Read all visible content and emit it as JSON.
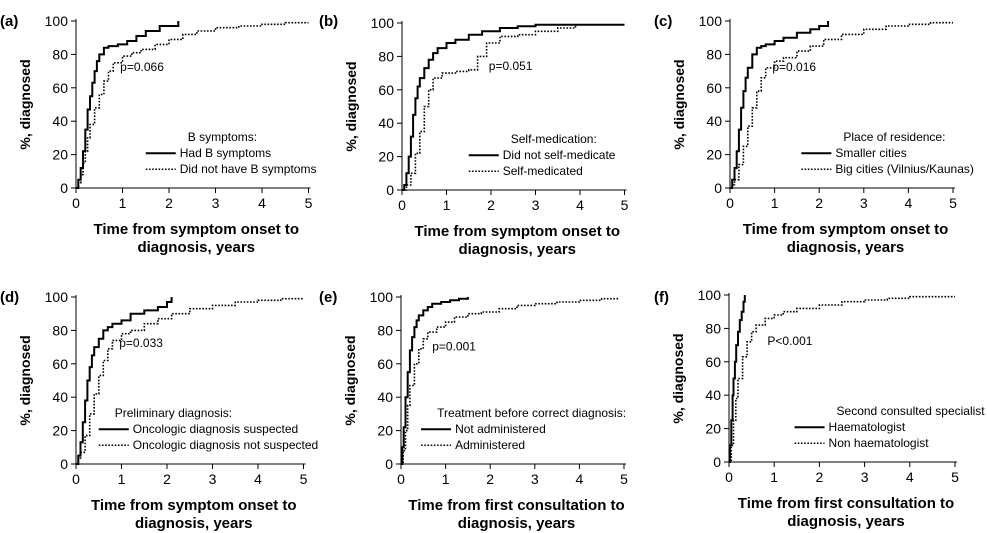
{
  "chart_data": [
    {
      "type": "line",
      "panel_label": "(a)",
      "ylabel": "%, diagnosed",
      "xlabel_lines": [
        "Time from symptom onset to",
        "diagnosis, years"
      ],
      "x_ticks": [
        "0",
        "1",
        "2",
        "3",
        "4",
        "5"
      ],
      "y_ticks": [
        "0",
        "20",
        "40",
        "60",
        "80",
        "100"
      ],
      "xlim": [
        0,
        5
      ],
      "ylim": [
        0,
        100
      ],
      "annotation": "p=0.066",
      "legend_title": "B symptoms:",
      "series": [
        {
          "name": "Had B symptoms",
          "style": "solid",
          "x": [
            0,
            0.05,
            0.1,
            0.15,
            0.2,
            0.25,
            0.3,
            0.35,
            0.4,
            0.45,
            0.5,
            0.6,
            0.7,
            0.9,
            1.1,
            1.3,
            1.5,
            1.8,
            2.2
          ],
          "y": [
            0,
            5,
            12,
            22,
            35,
            47,
            55,
            63,
            70,
            76,
            80,
            84,
            85,
            86,
            88,
            91,
            94,
            97,
            100
          ]
        },
        {
          "name": "Did not have B symptoms",
          "style": "dotted",
          "x": [
            0,
            0.05,
            0.1,
            0.15,
            0.2,
            0.25,
            0.3,
            0.4,
            0.5,
            0.6,
            0.7,
            0.8,
            1.0,
            1.2,
            1.4,
            1.7,
            2.0,
            2.3,
            2.6,
            3.0,
            3.5,
            4.0,
            4.5,
            5.0
          ],
          "y": [
            0,
            3,
            8,
            15,
            22,
            30,
            38,
            48,
            56,
            64,
            70,
            75,
            79,
            81,
            83,
            86,
            89,
            92,
            94,
            96,
            97,
            98,
            99,
            99
          ]
        }
      ]
    },
    {
      "type": "line",
      "panel_label": "(b)",
      "ylabel": "%, diagnosed",
      "xlabel_lines": [
        "Time from symptom onset to",
        "diagnosis, years"
      ],
      "x_ticks": [
        "0",
        "1",
        "2",
        "3",
        "4",
        "5"
      ],
      "y_ticks": [
        "0",
        "20",
        "40",
        "60",
        "80",
        "100"
      ],
      "xlim": [
        0,
        5
      ],
      "ylim": [
        0,
        100
      ],
      "annotation": "p=0.051",
      "legend_title": "Self-medication:",
      "series": [
        {
          "name": "Did not self-medicate",
          "style": "solid",
          "x": [
            0,
            0.05,
            0.1,
            0.15,
            0.2,
            0.25,
            0.3,
            0.35,
            0.4,
            0.5,
            0.6,
            0.7,
            0.8,
            1.0,
            1.2,
            1.5,
            1.8,
            2.2,
            2.6,
            3.0,
            4.0,
            5.0
          ],
          "y": [
            0,
            3,
            10,
            20,
            32,
            45,
            55,
            62,
            67,
            73,
            78,
            82,
            85,
            88,
            90,
            93,
            95,
            97,
            98,
            99,
            99,
            99
          ]
        },
        {
          "name": "Self-medicated",
          "style": "dotted",
          "x": [
            0,
            0.1,
            0.2,
            0.3,
            0.4,
            0.5,
            0.6,
            0.7,
            0.9,
            1.2,
            1.5,
            1.7,
            1.9,
            2.2,
            2.6,
            3.0,
            3.5,
            3.9
          ],
          "y": [
            0,
            3,
            10,
            22,
            35,
            50,
            60,
            67,
            70,
            71,
            72,
            80,
            88,
            92,
            93,
            95,
            97,
            99
          ]
        }
      ]
    },
    {
      "type": "line",
      "panel_label": "(c)",
      "ylabel": "%, diagnosed",
      "xlabel_lines": [
        "Time from symptom onset to",
        "diagnosis, years"
      ],
      "x_ticks": [
        "0",
        "1",
        "2",
        "3",
        "4",
        "5"
      ],
      "y_ticks": [
        "0",
        "20",
        "40",
        "60",
        "80",
        "100"
      ],
      "xlim": [
        0,
        5
      ],
      "ylim": [
        0,
        100
      ],
      "annotation": "p=0.016",
      "legend_title": "Place of residence:",
      "series": [
        {
          "name": "Smaller cities",
          "style": "solid",
          "x": [
            0,
            0.05,
            0.1,
            0.15,
            0.2,
            0.25,
            0.3,
            0.35,
            0.4,
            0.5,
            0.6,
            0.7,
            0.8,
            1.0,
            1.2,
            1.5,
            1.8,
            2.0,
            2.2
          ],
          "y": [
            0,
            5,
            12,
            22,
            35,
            48,
            58,
            66,
            72,
            80,
            84,
            85,
            86,
            88,
            90,
            93,
            95,
            97,
            100
          ]
        },
        {
          "name": "Big cities (Vilnius/Kaunas)",
          "style": "dotted",
          "x": [
            0,
            0.05,
            0.1,
            0.2,
            0.3,
            0.4,
            0.5,
            0.6,
            0.7,
            0.8,
            1.0,
            1.2,
            1.5,
            1.8,
            2.1,
            2.5,
            3.0,
            3.5,
            4.0,
            4.5,
            5.0
          ],
          "y": [
            0,
            2,
            5,
            14,
            25,
            37,
            48,
            58,
            66,
            72,
            76,
            78,
            82,
            85,
            89,
            92,
            95,
            97,
            98,
            99,
            99
          ]
        }
      ]
    },
    {
      "type": "line",
      "panel_label": "(d)",
      "ylabel": "%, diagnosed",
      "xlabel_lines": [
        "Time from symptom onset to",
        "diagnosis, years"
      ],
      "x_ticks": [
        "0",
        "1",
        "2",
        "3",
        "4",
        "5"
      ],
      "y_ticks": [
        "0",
        "20",
        "40",
        "60",
        "80",
        "100"
      ],
      "xlim": [
        0,
        5
      ],
      "ylim": [
        0,
        100
      ],
      "annotation": "p=0.033",
      "legend_title": "Preliminary diagnosis:",
      "series": [
        {
          "name": "Oncologic diagnosis suspected",
          "style": "solid",
          "x": [
            0,
            0.05,
            0.1,
            0.15,
            0.2,
            0.25,
            0.3,
            0.35,
            0.4,
            0.5,
            0.6,
            0.7,
            0.8,
            1.0,
            1.2,
            1.5,
            1.8,
            2.0,
            2.1
          ],
          "y": [
            0,
            5,
            13,
            25,
            38,
            50,
            58,
            65,
            70,
            75,
            80,
            82,
            84,
            86,
            90,
            92,
            94,
            97,
            100
          ]
        },
        {
          "name": "Oncologic diagnosis not suspected",
          "style": "dotted",
          "x": [
            0,
            0.05,
            0.1,
            0.2,
            0.3,
            0.4,
            0.5,
            0.6,
            0.7,
            0.8,
            1.0,
            1.2,
            1.5,
            1.8,
            2.1,
            2.5,
            3.0,
            3.5,
            4.0,
            4.5,
            5.0
          ],
          "y": [
            0,
            3,
            7,
            17,
            30,
            42,
            53,
            62,
            69,
            74,
            78,
            80,
            84,
            87,
            90,
            93,
            95,
            97,
            98,
            99,
            99
          ]
        }
      ]
    },
    {
      "type": "line",
      "panel_label": "(e)",
      "ylabel": "%, diagnosed",
      "xlabel_lines": [
        "Time from first consultation to",
        "diagnosis, years"
      ],
      "x_ticks": [
        "0",
        "1",
        "2",
        "3",
        "4",
        "5"
      ],
      "y_ticks": [
        "0",
        "20",
        "40",
        "60",
        "80",
        "100"
      ],
      "xlim": [
        0,
        5
      ],
      "ylim": [
        0,
        100
      ],
      "annotation": "p=0.001",
      "legend_title": "Treatment before correct diagnosis:",
      "series": [
        {
          "name": "Not administered",
          "style": "solid",
          "x": [
            0,
            0.03,
            0.06,
            0.1,
            0.15,
            0.2,
            0.25,
            0.3,
            0.35,
            0.4,
            0.5,
            0.6,
            0.7,
            0.9,
            1.1,
            1.3,
            1.5
          ],
          "y": [
            0,
            10,
            22,
            40,
            55,
            68,
            76,
            82,
            86,
            89,
            92,
            94,
            96,
            97,
            98,
            99,
            100
          ]
        },
        {
          "name": "Administered",
          "style": "dotted",
          "x": [
            0,
            0.05,
            0.1,
            0.15,
            0.2,
            0.3,
            0.4,
            0.5,
            0.6,
            0.8,
            1.0,
            1.2,
            1.5,
            1.8,
            2.2,
            2.6,
            3.0,
            3.5,
            4.0,
            4.5,
            4.9
          ],
          "y": [
            0,
            8,
            20,
            35,
            47,
            60,
            69,
            75,
            79,
            82,
            85,
            88,
            90,
            91,
            93,
            95,
            96,
            97,
            98,
            99,
            99
          ]
        }
      ]
    },
    {
      "type": "line",
      "panel_label": "(f)",
      "ylabel": "%, diagnosed",
      "xlabel_lines": [
        "Time from first consultation to",
        "diagnosis, years"
      ],
      "x_ticks": [
        "0",
        "1",
        "2",
        "3",
        "4",
        "5"
      ],
      "y_ticks": [
        "0",
        "20",
        "40",
        "60",
        "80",
        "100"
      ],
      "xlim": [
        0,
        5
      ],
      "ylim": [
        0,
        100
      ],
      "annotation": "P<0.001",
      "legend_title": "Second consulted specialist",
      "series": [
        {
          "name": "Haematologist",
          "style": "solid",
          "x": [
            0,
            0.02,
            0.05,
            0.08,
            0.1,
            0.13,
            0.16,
            0.2,
            0.24,
            0.28,
            0.32,
            0.35
          ],
          "y": [
            0,
            10,
            25,
            40,
            50,
            60,
            70,
            78,
            85,
            90,
            96,
            100
          ]
        },
        {
          "name": "Non haematologist",
          "style": "dotted",
          "x": [
            0,
            0.05,
            0.1,
            0.15,
            0.2,
            0.3,
            0.4,
            0.5,
            0.6,
            0.8,
            1.0,
            1.2,
            1.5,
            2.0,
            2.5,
            3.0,
            3.5,
            4.0,
            4.5,
            5.0
          ],
          "y": [
            0,
            10,
            25,
            38,
            50,
            63,
            72,
            78,
            82,
            86,
            88,
            90,
            92,
            94,
            96,
            97,
            98,
            99,
            99,
            99
          ]
        }
      ]
    }
  ]
}
